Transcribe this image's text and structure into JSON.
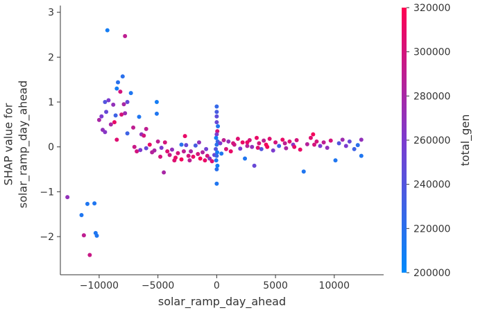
{
  "chart_data": {
    "type": "scatter",
    "xlabel": "solar_ramp_day_ahead",
    "ylabel_lines": [
      "SHAP value for",
      "solar_ramp_day_ahead"
    ],
    "xlim": [
      -13300,
      14200
    ],
    "ylim": [
      -2.85,
      3.15
    ],
    "xticks": [
      -10000,
      -5000,
      0,
      5000,
      10000
    ],
    "xtick_labels": [
      "−10000",
      "−5000",
      "0",
      "5000",
      "10000"
    ],
    "yticks": [
      -2,
      -1,
      0,
      1,
      2,
      3
    ],
    "ytick_labels": [
      "−2",
      "−1",
      "0",
      "1",
      "2",
      "3"
    ],
    "colorbar": {
      "label": "total_gen",
      "min": 200000,
      "max": 320000,
      "ticks": [
        200000,
        220000,
        240000,
        260000,
        280000,
        300000,
        320000
      ],
      "tick_labels": [
        "200000",
        "220000",
        "240000",
        "260000",
        "280000",
        "300000",
        "320000"
      ],
      "color_low": "#008afb",
      "color_mid": "#7c3bcf",
      "color_high": "#ff0052"
    },
    "grid": false,
    "points": [
      {
        "x": -12700,
        "y": -1.12,
        "c": 270000
      },
      {
        "x": -11500,
        "y": -1.52,
        "c": 215000
      },
      {
        "x": -11300,
        "y": -1.97,
        "c": 290000
      },
      {
        "x": -11000,
        "y": -1.27,
        "c": 215000
      },
      {
        "x": -10800,
        "y": -2.41,
        "c": 295000
      },
      {
        "x": -10400,
        "y": -1.26,
        "c": 215000
      },
      {
        "x": -10300,
        "y": -1.92,
        "c": 215000
      },
      {
        "x": -10200,
        "y": -1.98,
        "c": 215000
      },
      {
        "x": -9300,
        "y": 2.6,
        "c": 210000
      },
      {
        "x": -7800,
        "y": 2.47,
        "c": 290000
      },
      {
        "x": -8400,
        "y": 1.44,
        "c": 220000
      },
      {
        "x": -8000,
        "y": 1.57,
        "c": 220000
      },
      {
        "x": -8500,
        "y": 1.3,
        "c": 210000
      },
      {
        "x": -7300,
        "y": 1.2,
        "c": 215000
      },
      {
        "x": -8200,
        "y": 1.23,
        "c": 300000
      },
      {
        "x": -7600,
        "y": 1.0,
        "c": 250000
      },
      {
        "x": -9500,
        "y": 1.0,
        "c": 240000
      },
      {
        "x": -9200,
        "y": 1.04,
        "c": 260000
      },
      {
        "x": -8800,
        "y": 0.94,
        "c": 270000
      },
      {
        "x": -9800,
        "y": 0.68,
        "c": 260000
      },
      {
        "x": -9400,
        "y": 0.78,
        "c": 250000
      },
      {
        "x": -8600,
        "y": 0.7,
        "c": 230000
      },
      {
        "x": -8700,
        "y": 0.55,
        "c": 310000
      },
      {
        "x": -7900,
        "y": 0.95,
        "c": 280000
      },
      {
        "x": -7800,
        "y": 0.75,
        "c": 275000
      },
      {
        "x": -10000,
        "y": 0.6,
        "c": 280000
      },
      {
        "x": -9700,
        "y": 0.38,
        "c": 270000
      },
      {
        "x": -9500,
        "y": 0.33,
        "c": 265000
      },
      {
        "x": -9000,
        "y": 0.5,
        "c": 280000
      },
      {
        "x": -8100,
        "y": 0.72,
        "c": 300000
      },
      {
        "x": -7600,
        "y": 0.3,
        "c": 230000
      },
      {
        "x": -7100,
        "y": 0.43,
        "c": 290000
      },
      {
        "x": -8500,
        "y": 0.16,
        "c": 305000
      },
      {
        "x": -6600,
        "y": 0.67,
        "c": 215000
      },
      {
        "x": -5100,
        "y": 1.0,
        "c": 210000
      },
      {
        "x": -5100,
        "y": 0.74,
        "c": 215000
      },
      {
        "x": -6000,
        "y": 0.4,
        "c": 290000
      },
      {
        "x": -6400,
        "y": 0.28,
        "c": 270000
      },
      {
        "x": -6200,
        "y": 0.25,
        "c": 300000
      },
      {
        "x": -7000,
        "y": 0.0,
        "c": 295000
      },
      {
        "x": -6800,
        "y": -0.1,
        "c": 300000
      },
      {
        "x": -6500,
        "y": -0.07,
        "c": 260000
      },
      {
        "x": -6000,
        "y": -0.03,
        "c": 250000
      },
      {
        "x": -5700,
        "y": 0.05,
        "c": 310000
      },
      {
        "x": -5300,
        "y": -0.08,
        "c": 280000
      },
      {
        "x": -5000,
        "y": 0.12,
        "c": 290000
      },
      {
        "x": -4700,
        "y": -0.02,
        "c": 260000
      },
      {
        "x": -4400,
        "y": 0.1,
        "c": 300000
      },
      {
        "x": -4200,
        "y": -0.1,
        "c": 305000
      },
      {
        "x": -4000,
        "y": -0.18,
        "c": 295000
      },
      {
        "x": -3800,
        "y": -0.06,
        "c": 270000
      },
      {
        "x": -3500,
        "y": -0.24,
        "c": 310000
      },
      {
        "x": -3300,
        "y": -0.14,
        "c": 300000
      },
      {
        "x": -3000,
        "y": -0.28,
        "c": 315000
      },
      {
        "x": -2800,
        "y": -0.1,
        "c": 290000
      },
      {
        "x": -2600,
        "y": 0.04,
        "c": 250000
      },
      {
        "x": -2400,
        "y": -0.2,
        "c": 300000
      },
      {
        "x": -2200,
        "y": -0.1,
        "c": 280000
      },
      {
        "x": -2000,
        "y": -0.22,
        "c": 310000
      },
      {
        "x": -1800,
        "y": 0.03,
        "c": 235000
      },
      {
        "x": -1600,
        "y": -0.16,
        "c": 300000
      },
      {
        "x": -1400,
        "y": -0.26,
        "c": 315000
      },
      {
        "x": -1200,
        "y": -0.12,
        "c": 285000
      },
      {
        "x": -1000,
        "y": -0.3,
        "c": 310000
      },
      {
        "x": -800,
        "y": -0.2,
        "c": 300000
      },
      {
        "x": -600,
        "y": -0.26,
        "c": 270000
      },
      {
        "x": -400,
        "y": -0.32,
        "c": 305000
      },
      {
        "x": -200,
        "y": -0.18,
        "c": 250000
      },
      {
        "x": -4500,
        "y": -0.57,
        "c": 280000
      },
      {
        "x": -3000,
        "y": 0.05,
        "c": 220000
      },
      {
        "x": -2700,
        "y": 0.24,
        "c": 310000
      },
      {
        "x": -1500,
        "y": 0.1,
        "c": 270000
      },
      {
        "x": 0,
        "y": 0.9,
        "c": 225000
      },
      {
        "x": 0,
        "y": 0.78,
        "c": 235000
      },
      {
        "x": 0,
        "y": 0.68,
        "c": 245000
      },
      {
        "x": 0,
        "y": 0.55,
        "c": 250000
      },
      {
        "x": 100,
        "y": 0.46,
        "c": 215000
      },
      {
        "x": 50,
        "y": 0.35,
        "c": 300000
      },
      {
        "x": 0,
        "y": 0.28,
        "c": 260000
      },
      {
        "x": -50,
        "y": 0.2,
        "c": 210000
      },
      {
        "x": 80,
        "y": 0.12,
        "c": 230000
      },
      {
        "x": 0,
        "y": 0.05,
        "c": 220000
      },
      {
        "x": -80,
        "y": -0.05,
        "c": 240000
      },
      {
        "x": 40,
        "y": -0.12,
        "c": 210000
      },
      {
        "x": 0,
        "y": -0.2,
        "c": 225000
      },
      {
        "x": -40,
        "y": -0.3,
        "c": 215000
      },
      {
        "x": 60,
        "y": -0.42,
        "c": 210000
      },
      {
        "x": 0,
        "y": -0.5,
        "c": 220000
      },
      {
        "x": 0,
        "y": -0.82,
        "c": 215000
      },
      {
        "x": 300,
        "y": 0.08,
        "c": 260000
      },
      {
        "x": 400,
        "y": -0.15,
        "c": 215000
      },
      {
        "x": 600,
        "y": 0.15,
        "c": 290000
      },
      {
        "x": 800,
        "y": -0.05,
        "c": 300000
      },
      {
        "x": 1000,
        "y": 0.12,
        "c": 270000
      },
      {
        "x": 1200,
        "y": -0.1,
        "c": 310000
      },
      {
        "x": 1500,
        "y": 0.05,
        "c": 295000
      },
      {
        "x": 1800,
        "y": 0.18,
        "c": 305000
      },
      {
        "x": 2000,
        "y": -0.04,
        "c": 260000
      },
      {
        "x": 2200,
        "y": 0.1,
        "c": 310000
      },
      {
        "x": 2400,
        "y": -0.26,
        "c": 215000
      },
      {
        "x": 2600,
        "y": 0.02,
        "c": 285000
      },
      {
        "x": 2800,
        "y": 0.15,
        "c": 300000
      },
      {
        "x": 3000,
        "y": 0.0,
        "c": 270000
      },
      {
        "x": 3200,
        "y": -0.42,
        "c": 250000
      },
      {
        "x": 3400,
        "y": 0.2,
        "c": 310000
      },
      {
        "x": 3600,
        "y": 0.08,
        "c": 300000
      },
      {
        "x": 3800,
        "y": -0.05,
        "c": 240000
      },
      {
        "x": 4000,
        "y": 0.14,
        "c": 290000
      },
      {
        "x": 4200,
        "y": 0.05,
        "c": 315000
      },
      {
        "x": 4500,
        "y": 0.18,
        "c": 305000
      },
      {
        "x": 4800,
        "y": -0.08,
        "c": 260000
      },
      {
        "x": 5000,
        "y": 0.1,
        "c": 300000
      },
      {
        "x": 5300,
        "y": 0.02,
        "c": 230000
      },
      {
        "x": 5600,
        "y": 0.16,
        "c": 310000
      },
      {
        "x": 5900,
        "y": -0.03,
        "c": 280000
      },
      {
        "x": 6200,
        "y": 0.12,
        "c": 305000
      },
      {
        "x": 6500,
        "y": 0.05,
        "c": 265000
      },
      {
        "x": 6800,
        "y": 0.15,
        "c": 300000
      },
      {
        "x": 7100,
        "y": -0.06,
        "c": 310000
      },
      {
        "x": 7400,
        "y": -0.55,
        "c": 215000
      },
      {
        "x": 7700,
        "y": 0.06,
        "c": 285000
      },
      {
        "x": 8000,
        "y": 0.2,
        "c": 305000
      },
      {
        "x": 8200,
        "y": 0.28,
        "c": 315000
      },
      {
        "x": 8500,
        "y": 0.12,
        "c": 300000
      },
      {
        "x": 8800,
        "y": 0.02,
        "c": 260000
      },
      {
        "x": 9100,
        "y": 0.1,
        "c": 290000
      },
      {
        "x": 9400,
        "y": -0.02,
        "c": 270000
      },
      {
        "x": 9700,
        "y": 0.14,
        "c": 300000
      },
      {
        "x": 10100,
        "y": -0.3,
        "c": 215000
      },
      {
        "x": 10400,
        "y": 0.08,
        "c": 240000
      },
      {
        "x": 10700,
        "y": 0.16,
        "c": 275000
      },
      {
        "x": 11000,
        "y": 0.02,
        "c": 260000
      },
      {
        "x": 11300,
        "y": 0.12,
        "c": 250000
      },
      {
        "x": 11700,
        "y": -0.05,
        "c": 230000
      },
      {
        "x": 12000,
        "y": 0.04,
        "c": 220000
      },
      {
        "x": 12300,
        "y": 0.16,
        "c": 270000
      },
      {
        "x": 12300,
        "y": -0.2,
        "c": 215000
      },
      {
        "x": 1400,
        "y": 0.08,
        "c": 300000
      },
      {
        "x": 2600,
        "y": 0.1,
        "c": 310000
      },
      {
        "x": 3500,
        "y": -0.02,
        "c": 305000
      },
      {
        "x": 4300,
        "y": 0.0,
        "c": 315000
      },
      {
        "x": 5800,
        "y": 0.08,
        "c": 290000
      },
      {
        "x": 6600,
        "y": 0.0,
        "c": 310000
      },
      {
        "x": 8300,
        "y": 0.05,
        "c": 300000
      },
      {
        "x": -3600,
        "y": -0.3,
        "c": 305000
      },
      {
        "x": -2300,
        "y": -0.3,
        "c": 290000
      },
      {
        "x": -900,
        "y": -0.05,
        "c": 255000
      },
      {
        "x": -5500,
        "y": -0.12,
        "c": 285000
      },
      {
        "x": -4800,
        "y": -0.22,
        "c": 300000
      }
    ]
  }
}
